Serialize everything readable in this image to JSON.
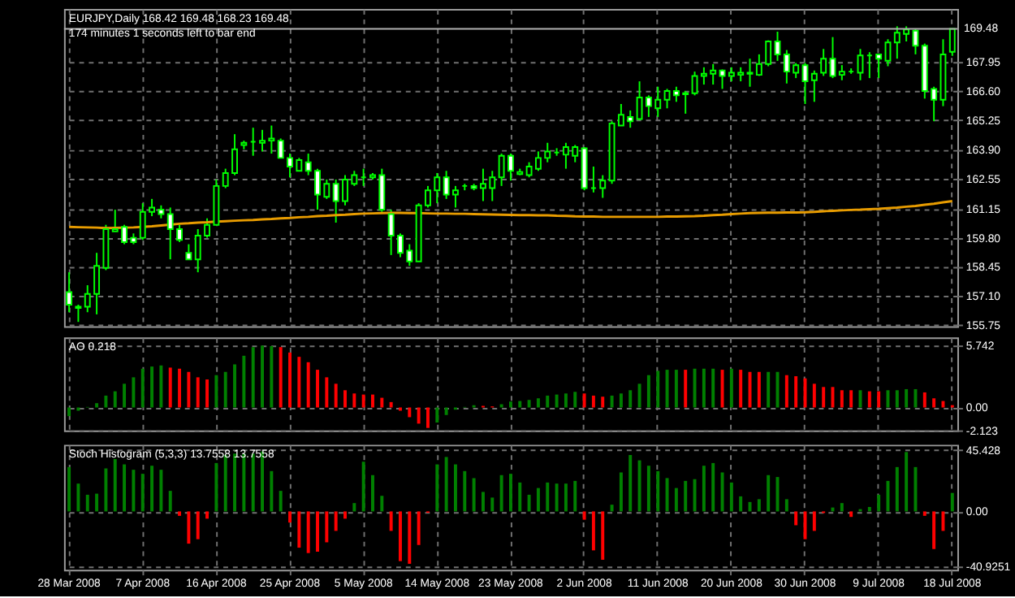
{
  "chart_data": [
    {
      "type": "candlestick",
      "title": "EURJPY,Daily  168.42 169.48 168.23 169.48",
      "subtitle": "174 minutes 1 seconds left to bar end",
      "categories": [
        null,
        null,
        null,
        null,
        null,
        null,
        null,
        null,
        null,
        null,
        null,
        null,
        null,
        null,
        null,
        null,
        null,
        null,
        null,
        null,
        null,
        null,
        null,
        null,
        null,
        null,
        null,
        null,
        null,
        null,
        null,
        null,
        null,
        null,
        null,
        null,
        null,
        null,
        null,
        null,
        null,
        null,
        null,
        null,
        null,
        null,
        null,
        null,
        null,
        null,
        null,
        null,
        null,
        null,
        null,
        null,
        null,
        null,
        null,
        null,
        null,
        null,
        null,
        null,
        null,
        null,
        null,
        null,
        null,
        null,
        null,
        null,
        null,
        null,
        null,
        null,
        null,
        null,
        null,
        null,
        null,
        null,
        null,
        null,
        null,
        null,
        null,
        null,
        null,
        null,
        null,
        null,
        null,
        null,
        null,
        null,
        null
      ],
      "ohlc": [
        [
          157.28,
          158.2,
          156.35,
          156.7
        ],
        [
          156.6,
          156.7,
          155.9,
          156.55
        ],
        [
          156.6,
          157.6,
          156.35,
          157.2
        ],
        [
          157.2,
          159.1,
          156.25,
          158.5
        ],
        [
          158.4,
          160.4,
          158.3,
          160.2
        ],
        [
          160.1,
          161.1,
          160.1,
          160.2
        ],
        [
          160.3,
          160.4,
          159.5,
          159.6
        ],
        [
          159.8,
          160.0,
          159.5,
          159.6
        ],
        [
          159.8,
          161.4,
          159.7,
          161.0
        ],
        [
          161.0,
          161.6,
          160.8,
          161.2
        ],
        [
          161.1,
          161.3,
          160.7,
          160.9
        ],
        [
          160.9,
          161.2,
          158.8,
          160.2
        ],
        [
          160.2,
          160.4,
          159.6,
          159.7
        ],
        [
          159.1,
          159.5,
          158.8,
          158.8
        ],
        [
          158.8,
          160.2,
          158.2,
          159.9
        ],
        [
          159.9,
          160.7,
          159.8,
          160.4
        ],
        [
          160.4,
          162.5,
          160.4,
          162.2
        ],
        [
          162.2,
          163.0,
          162.1,
          162.8
        ],
        [
          162.8,
          164.6,
          162.7,
          163.9
        ],
        [
          164.1,
          164.3,
          163.9,
          164.2
        ],
        [
          164.25,
          164.9,
          163.6,
          164.25
        ],
        [
          164.2,
          164.8,
          163.8,
          164.3
        ],
        [
          164.3,
          165.0,
          163.7,
          164.4
        ],
        [
          164.3,
          164.4,
          163.5,
          163.5
        ],
        [
          163.5,
          163.7,
          162.6,
          163.1
        ],
        [
          162.9,
          163.5,
          162.9,
          163.4
        ],
        [
          163.3,
          163.7,
          162.7,
          162.9
        ],
        [
          162.9,
          163.0,
          161.1,
          161.8
        ],
        [
          161.7,
          162.5,
          161.6,
          162.3
        ],
        [
          162.3,
          162.5,
          160.5,
          161.5
        ],
        [
          161.5,
          162.7,
          161.3,
          162.5
        ],
        [
          162.3,
          162.9,
          162.2,
          162.7
        ],
        [
          162.6,
          163.0,
          162.2,
          162.6
        ],
        [
          162.6,
          162.8,
          162.5,
          162.7
        ],
        [
          162.7,
          163.0,
          161.0,
          161.1
        ],
        [
          160.9,
          161.1,
          159.0,
          159.9
        ],
        [
          159.9,
          160.0,
          158.9,
          159.1
        ],
        [
          159.2,
          159.5,
          158.5,
          158.7
        ],
        [
          158.7,
          161.4,
          158.7,
          161.3
        ],
        [
          161.3,
          162.2,
          161.2,
          162.0
        ],
        [
          162.0,
          162.8,
          161.4,
          162.6
        ],
        [
          162.6,
          162.9,
          161.6,
          161.8
        ],
        [
          161.8,
          162.2,
          161.2,
          162.0
        ],
        [
          162.2,
          162.3,
          162.0,
          162.2
        ],
        [
          162.2,
          162.3,
          162.0,
          162.1
        ],
        [
          162.1,
          163.0,
          161.5,
          162.3
        ],
        [
          162.1,
          162.9,
          161.5,
          162.6
        ],
        [
          162.6,
          163.7,
          162.2,
          163.6
        ],
        [
          163.6,
          163.7,
          162.45,
          162.9
        ],
        [
          162.75,
          163.0,
          162.7,
          162.85
        ],
        [
          162.7,
          163.3,
          162.6,
          163.1
        ],
        [
          163.0,
          163.8,
          162.9,
          163.5
        ],
        [
          163.5,
          164.2,
          163.3,
          163.8
        ],
        [
          163.75,
          163.95,
          163.6,
          163.75
        ],
        [
          163.65,
          164.2,
          163.0,
          164.0
        ],
        [
          163.6,
          164.1,
          163.3,
          164.0
        ],
        [
          163.95,
          164.0,
          162.0,
          162.1
        ],
        [
          162.1,
          163.1,
          161.9,
          162.1
        ],
        [
          162.1,
          162.7,
          161.65,
          162.45
        ],
        [
          162.45,
          165.2,
          162.3,
          165.1
        ],
        [
          165.0,
          166.0,
          164.98,
          165.5
        ],
        [
          165.4,
          165.7,
          164.9,
          165.2
        ],
        [
          165.3,
          167.05,
          165.25,
          166.3
        ],
        [
          166.3,
          166.4,
          165.4,
          165.9
        ],
        [
          165.8,
          166.8,
          165.4,
          166.2
        ],
        [
          166.2,
          166.7,
          165.8,
          166.6
        ],
        [
          166.6,
          166.8,
          166.1,
          166.4
        ],
        [
          166.45,
          166.6,
          165.55,
          166.5
        ],
        [
          166.5,
          167.5,
          166.4,
          167.3
        ],
        [
          167.3,
          167.7,
          166.9,
          167.4
        ],
        [
          167.4,
          167.85,
          166.9,
          167.55
        ],
        [
          167.55,
          167.6,
          166.7,
          167.3
        ],
        [
          167.3,
          167.7,
          167.05,
          167.45
        ],
        [
          167.35,
          167.7,
          167.05,
          167.45
        ],
        [
          167.4,
          168.1,
          166.8,
          167.45
        ],
        [
          167.35,
          168.3,
          167.3,
          167.85
        ],
        [
          167.85,
          168.95,
          167.75,
          168.9
        ],
        [
          168.9,
          169.35,
          168.0,
          168.3
        ],
        [
          168.3,
          168.5,
          166.95,
          167.5
        ],
        [
          167.45,
          167.9,
          167.2,
          167.8
        ],
        [
          167.8,
          167.9,
          166.0,
          167.05
        ],
        [
          167.1,
          167.55,
          166.1,
          167.4
        ],
        [
          167.45,
          168.55,
          167.3,
          168.1
        ],
        [
          168.1,
          169.1,
          167.2,
          167.3
        ],
        [
          167.35,
          167.8,
          167.1,
          167.5
        ],
        [
          167.5,
          167.65,
          167.4,
          167.5
        ],
        [
          167.45,
          168.55,
          167.1,
          168.25
        ],
        [
          168.25,
          168.4,
          167.2,
          168.25
        ],
        [
          168.3,
          168.3,
          167.2,
          168.1
        ],
        [
          168.0,
          169.0,
          167.75,
          168.85
        ],
        [
          168.85,
          169.6,
          168.1,
          169.3
        ],
        [
          169.25,
          169.6,
          168.9,
          169.45
        ],
        [
          169.4,
          169.5,
          168.3,
          168.7
        ],
        [
          168.7,
          168.8,
          166.25,
          166.6
        ],
        [
          166.7,
          166.8,
          165.2,
          166.2
        ],
        [
          166.2,
          169.0,
          165.9,
          168.3
        ],
        [
          168.42,
          169.48,
          168.23,
          169.48
        ]
      ],
      "color": "#00ff00",
      "series": [
        {
          "type": "line",
          "color": "#e89c00",
          "values": [
            160.3,
            160.29,
            160.28,
            160.27,
            160.25,
            160.26,
            160.27,
            160.28,
            160.3,
            160.33,
            160.37,
            160.41,
            160.45,
            160.47,
            160.5,
            160.52,
            160.55,
            160.57,
            160.59,
            160.61,
            160.62,
            160.65,
            160.67,
            160.7,
            160.72,
            160.75,
            160.77,
            160.8,
            160.82,
            160.85,
            160.87,
            160.9,
            160.92,
            160.93,
            160.94,
            160.95,
            160.95,
            160.94,
            160.94,
            160.93,
            160.92,
            160.92,
            160.91,
            160.91,
            160.9,
            160.89,
            160.88,
            160.87,
            160.86,
            160.85,
            160.85,
            160.84,
            160.84,
            160.82,
            160.81,
            160.79,
            160.78,
            160.78,
            160.77,
            160.77,
            160.77,
            160.77,
            160.77,
            160.77,
            160.77,
            160.78,
            160.78,
            160.79,
            160.8,
            160.82,
            160.85,
            160.87,
            160.9,
            160.92,
            160.94,
            160.95,
            160.96,
            160.96,
            160.97,
            160.97,
            160.98,
            161.0,
            161.03,
            161.05,
            161.07,
            161.09,
            161.1,
            161.12,
            161.14,
            161.17,
            161.2,
            161.24,
            161.27,
            161.33,
            161.38,
            161.44,
            161.5
          ]
        }
      ],
      "ylim": [
        155.7,
        170.4
      ],
      "yticks": [
        167.95,
        {
          "value": 166.6,
          "label": "166.60"
        },
        165.25,
        {
          "value": 163.9,
          "label": "163.90"
        },
        162.55,
        161.15,
        {
          "value": 159.8,
          "label": "159.80"
        },
        158.45,
        {
          "value": 157.1,
          "label": "157.10"
        },
        155.75
      ],
      "ref_lines": [
        {
          "axis": "y",
          "value": 169.48,
          "label": "169.48",
          "color": "#b0b0b0"
        }
      ],
      "grid": true,
      "tick_labels": "y"
    },
    {
      "type": "bar",
      "title": "AO 0.218",
      "categories": [
        null,
        null,
        null,
        null,
        null,
        null,
        null,
        null,
        null,
        null,
        null,
        null,
        null,
        null,
        null,
        null,
        null,
        null,
        null,
        null,
        null,
        null,
        null,
        null,
        null,
        null,
        null,
        null,
        null,
        null,
        null,
        null,
        null,
        null,
        null,
        null,
        null,
        null,
        null,
        null,
        null,
        null,
        null,
        null,
        null,
        null,
        null,
        null,
        null,
        null,
        null,
        null,
        null,
        null,
        null,
        null,
        null,
        null,
        null,
        null,
        null,
        null,
        null,
        null,
        null,
        null,
        null,
        null,
        null,
        null,
        null,
        null,
        null,
        null,
        null,
        null,
        null,
        null,
        null,
        null,
        null,
        null,
        null,
        null,
        null,
        null,
        null,
        null,
        null,
        null,
        null,
        null,
        null,
        null,
        null,
        null,
        null
      ],
      "values": [
        -0.8,
        -0.3,
        0.05,
        0.4,
        1.1,
        1.5,
        2.2,
        2.8,
        3.6,
        3.8,
        3.9,
        3.7,
        3.6,
        3.3,
        2.8,
        2.6,
        3.0,
        3.3,
        4.0,
        4.8,
        5.6,
        5.742,
        5.7,
        5.6,
        5.1,
        4.7,
        4.2,
        3.5,
        2.8,
        2.2,
        1.6,
        1.3,
        1.2,
        1.2,
        0.9,
        0.5,
        -0.3,
        -0.9,
        -1.5,
        -1.9,
        -1.4,
        -0.7,
        -0.2,
        0.05,
        0.2,
        0.15,
        0.1,
        0.3,
        0.55,
        0.6,
        0.7,
        0.85,
        1.1,
        1.2,
        1.3,
        1.45,
        1.3,
        1.1,
        1.0,
        1.1,
        1.3,
        1.6,
        2.2,
        3.0,
        3.4,
        3.5,
        3.5,
        3.5,
        3.6,
        3.6,
        3.6,
        3.5,
        3.6,
        3.5,
        3.3,
        3.3,
        3.3,
        3.3,
        3.0,
        2.9,
        2.7,
        2.2,
        1.9,
        1.9,
        1.6,
        1.6,
        1.6,
        1.5,
        1.5,
        1.6,
        1.6,
        1.7,
        1.7,
        1.4,
        0.85,
        0.6,
        0.218
      ],
      "colors": [
        "#008000",
        "#008000",
        "#008000",
        "#008000",
        "#008000",
        "#008000",
        "#008000",
        "#008000",
        "#008000",
        "#008000",
        "#008000",
        "#ff0000",
        "#ff0000",
        "#ff0000",
        "#ff0000",
        "#ff0000",
        "#008000",
        "#008000",
        "#008000",
        "#008000",
        "#008000",
        "#008000",
        "#008000",
        "#ff0000",
        "#ff0000",
        "#ff0000",
        "#ff0000",
        "#ff0000",
        "#ff0000",
        "#ff0000",
        "#ff0000",
        "#ff0000",
        "#ff0000",
        "#ff0000",
        "#ff0000",
        "#ff0000",
        "#ff0000",
        "#ff0000",
        "#ff0000",
        "#ff0000",
        "#008000",
        "#008000",
        "#008000",
        "#008000",
        "#008000",
        "#ff0000",
        "#ff0000",
        "#008000",
        "#008000",
        "#008000",
        "#008000",
        "#008000",
        "#008000",
        "#008000",
        "#008000",
        "#008000",
        "#ff0000",
        "#ff0000",
        "#ff0000",
        "#008000",
        "#008000",
        "#008000",
        "#008000",
        "#008000",
        "#008000",
        "#008000",
        "#008000",
        "#ff0000",
        "#008000",
        "#008000",
        "#008000",
        "#ff0000",
        "#008000",
        "#ff0000",
        "#ff0000",
        "#ff0000",
        "#008000",
        "#008000",
        "#ff0000",
        "#ff0000",
        "#ff0000",
        "#ff0000",
        "#ff0000",
        "#ff0000",
        "#ff0000",
        "#ff0000",
        "#008000",
        "#ff0000",
        "#ff0000",
        "#008000",
        "#008000",
        "#008000",
        "#008000",
        "#ff0000",
        "#ff0000",
        "#ff0000",
        "#ff0000"
      ],
      "ylim": [
        -2.123,
        6.5
      ],
      "yticks": [
        5.742,
        {
          "value": 0,
          "label": "0.00"
        },
        -2.123
      ],
      "grid": true,
      "tick_labels": "y"
    },
    {
      "type": "bar",
      "title": "Stoch Histogram (5,3,3) 13.7558 13.7558",
      "categories": [
        "28 Mar 2008",
        null,
        null,
        null,
        null,
        null,
        null,
        null,
        "7 Apr 2008",
        null,
        null,
        null,
        null,
        null,
        null,
        null,
        "16 Apr 2008",
        null,
        null,
        null,
        null,
        null,
        null,
        null,
        "25 Apr 2008",
        null,
        null,
        null,
        null,
        null,
        null,
        null,
        "5 May 2008",
        null,
        null,
        null,
        null,
        null,
        null,
        null,
        "14 May 2008",
        null,
        null,
        null,
        null,
        null,
        null,
        null,
        "23 May 2008",
        null,
        null,
        null,
        null,
        null,
        null,
        null,
        "2 Jun 2008",
        null,
        null,
        null,
        null,
        null,
        null,
        null,
        "11 Jun 2008",
        null,
        null,
        null,
        null,
        null,
        null,
        null,
        "20 Jun 2008",
        null,
        null,
        null,
        null,
        null,
        null,
        null,
        "30 Jun 2008",
        null,
        null,
        null,
        null,
        null,
        null,
        null,
        "9 Jul 2008",
        null,
        null,
        null,
        null,
        null,
        null,
        null,
        "18 Jul 2008"
      ],
      "values": [
        33,
        20.7,
        12.4,
        13.2,
        32,
        39,
        35,
        31,
        28,
        34,
        31,
        15.3,
        -3.3,
        -24,
        -20.7,
        -5.4,
        36,
        42,
        43,
        43,
        43,
        44.6,
        30,
        15.3,
        -8.3,
        -27,
        -31,
        -30,
        -23,
        -14.5,
        -5.4,
        6.2,
        37,
        27,
        11.6,
        -14.5,
        -37,
        -39,
        -25,
        -1,
        35,
        40.5,
        35,
        30,
        24.8,
        14.5,
        10.3,
        27,
        28,
        21.5,
        12.4,
        17.4,
        21.5,
        20.7,
        20.7,
        22.7,
        -6.2,
        -29,
        -36,
        5,
        29,
        42,
        38,
        34,
        30,
        24.8,
        17.4,
        22.7,
        24,
        34,
        36,
        29,
        21.5,
        11.2,
        7,
        9.1,
        27,
        25.6,
        9.1,
        -10.3,
        -20.7,
        -14.5,
        -1.2,
        2.9,
        6.2,
        -4.1,
        1.7,
        3.3,
        12.4,
        22.7,
        33,
        44.2,
        33,
        -3.3,
        -28,
        -14.5,
        13.7558
      ],
      "colors": [
        "#008000",
        "#008000",
        "#008000",
        "#008000",
        "#008000",
        "#008000",
        "#008000",
        "#008000",
        "#008000",
        "#008000",
        "#008000",
        "#008000",
        "#ff0000",
        "#ff0000",
        "#ff0000",
        "#ff0000",
        "#008000",
        "#008000",
        "#008000",
        "#008000",
        "#008000",
        "#008000",
        "#008000",
        "#008000",
        "#ff0000",
        "#ff0000",
        "#ff0000",
        "#ff0000",
        "#ff0000",
        "#ff0000",
        "#ff0000",
        "#008000",
        "#008000",
        "#008000",
        "#008000",
        "#ff0000",
        "#ff0000",
        "#ff0000",
        "#ff0000",
        "#ff0000",
        "#008000",
        "#008000",
        "#008000",
        "#008000",
        "#008000",
        "#008000",
        "#008000",
        "#008000",
        "#008000",
        "#008000",
        "#008000",
        "#008000",
        "#008000",
        "#008000",
        "#008000",
        "#008000",
        "#ff0000",
        "#ff0000",
        "#ff0000",
        "#008000",
        "#008000",
        "#008000",
        "#008000",
        "#008000",
        "#008000",
        "#008000",
        "#008000",
        "#008000",
        "#008000",
        "#008000",
        "#008000",
        "#008000",
        "#008000",
        "#008000",
        "#008000",
        "#008000",
        "#008000",
        "#008000",
        "#008000",
        "#ff0000",
        "#ff0000",
        "#ff0000",
        "#ff0000",
        "#008000",
        "#008000",
        "#ff0000",
        "#008000",
        "#008000",
        "#008000",
        "#008000",
        "#008000",
        "#008000",
        "#008000",
        "#ff0000",
        "#ff0000",
        "#ff0000",
        "#008000"
      ],
      "ylim": [
        -43.4,
        49.6
      ],
      "yticks": [
        45.428,
        {
          "value": 0,
          "label": "0.00"
        },
        -40.9251
      ],
      "grid": true
    }
  ]
}
